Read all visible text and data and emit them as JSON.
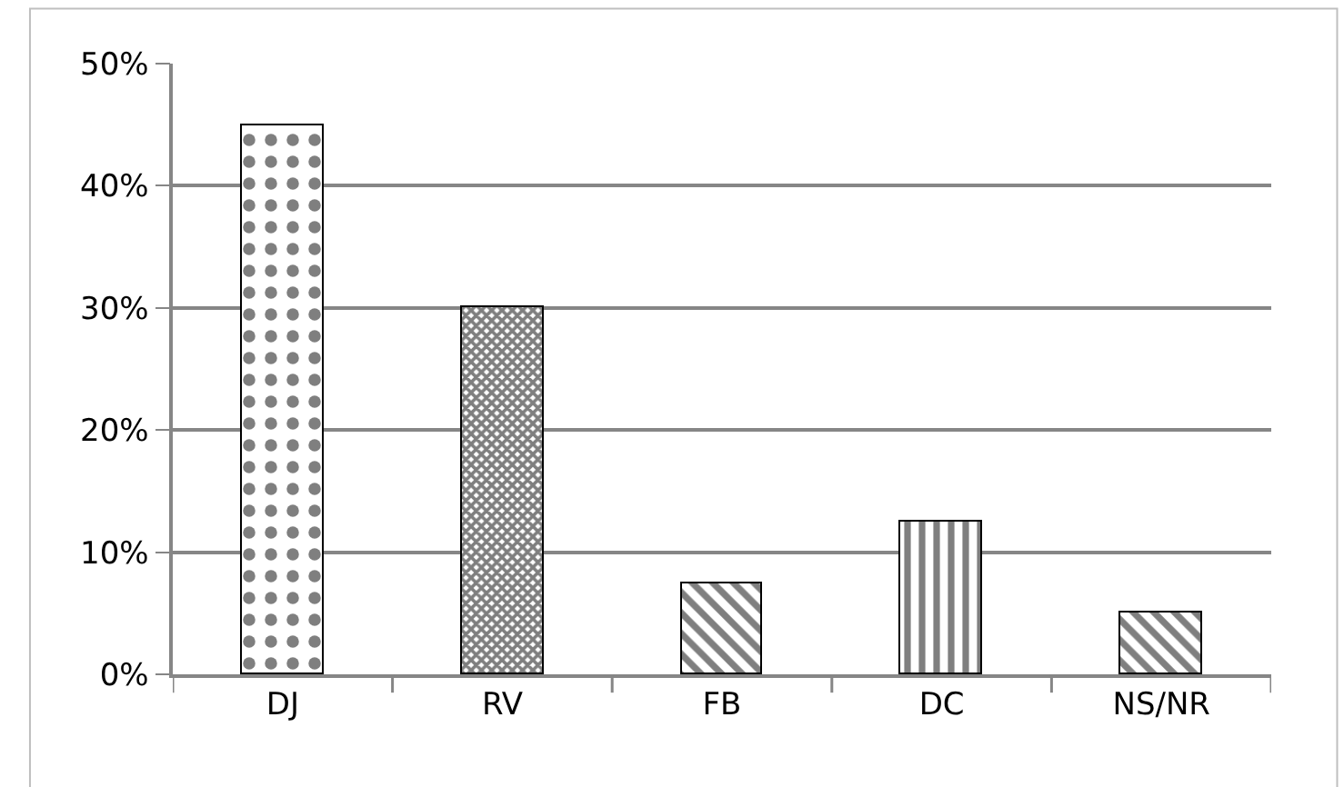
{
  "chart_data": {
    "type": "bar",
    "categories": [
      "DJ",
      "RV",
      "FB",
      "DC",
      "NS/NR"
    ],
    "values": [
      45,
      30,
      7.5,
      12.5,
      5
    ],
    "colors": [
      "#000000",
      "#000000",
      "#000000",
      "#000000",
      "#000000"
    ],
    "ylim": [
      0,
      50
    ],
    "yticks": [
      {
        "value": 0,
        "label": "0%"
      },
      {
        "value": 10,
        "label": "10%"
      },
      {
        "value": 20,
        "label": "20%"
      },
      {
        "value": 30,
        "label": "30%"
      },
      {
        "value": 40,
        "label": "40%"
      },
      {
        "value": 50,
        "label": "50%"
      }
    ],
    "grid": "y"
  }
}
